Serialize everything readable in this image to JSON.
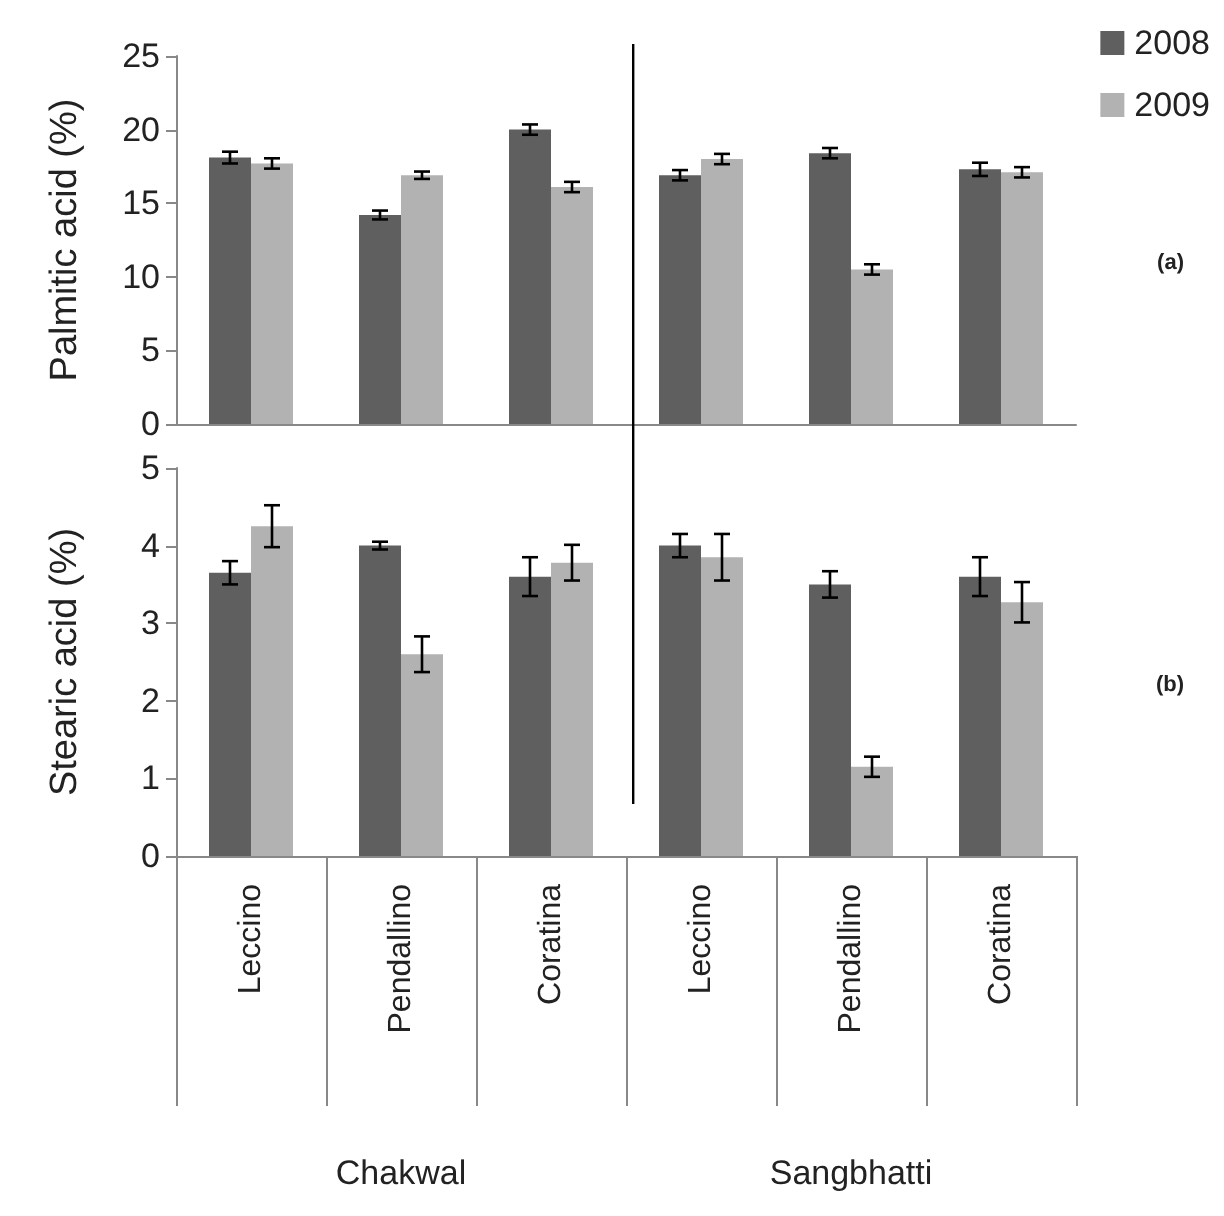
{
  "chart_data": [
    {
      "type": "bar",
      "ylabel": "Palmitic acid (%)",
      "categories": [
        null,
        null,
        null,
        null,
        null,
        null
      ],
      "series": [
        {
          "name": "2008",
          "color": "#5f5f5f",
          "values": [
            18.1,
            14.2,
            20.0,
            16.9,
            18.4,
            17.3
          ],
          "errors": [
            0.4,
            0.3,
            0.35,
            0.35,
            0.35,
            0.45
          ]
        },
        {
          "name": "2009",
          "color": "#b2b2b2",
          "values": [
            17.7,
            16.9,
            16.1,
            18.0,
            10.5,
            17.1
          ],
          "errors": [
            0.35,
            0.25,
            0.35,
            0.35,
            0.35,
            0.35
          ]
        }
      ],
      "ylim": [
        0,
        25
      ],
      "yticks": [
        0,
        5,
        10,
        15,
        20,
        25
      ],
      "tick_labels": "y",
      "legend": "top right",
      "annotations": [
        "(a)"
      ]
    },
    {
      "type": "bar",
      "ylabel": "Stearic acid (%)",
      "categories": [
        "Leccino",
        "Pendallino",
        "Coratina",
        "Leccino",
        "Pendallino",
        "Coratina"
      ],
      "series": [
        {
          "color": "#5f5f5f",
          "values": [
            3.65,
            4.0,
            3.6,
            4.0,
            3.5,
            3.6
          ],
          "errors": [
            0.15,
            0.05,
            0.25,
            0.15,
            0.17,
            0.25
          ]
        },
        {
          "color": "#b2b2b2",
          "values": [
            4.25,
            2.6,
            3.78,
            3.85,
            1.15,
            3.27
          ],
          "errors": [
            0.27,
            0.23,
            0.23,
            0.3,
            0.13,
            0.26
          ]
        }
      ],
      "ylim": [
        0,
        5
      ],
      "yticks": [
        0,
        1,
        2,
        3,
        4,
        5
      ],
      "annotations": [
        "(b)",
        "Chakwal",
        "Sangbhatti"
      ]
    }
  ]
}
